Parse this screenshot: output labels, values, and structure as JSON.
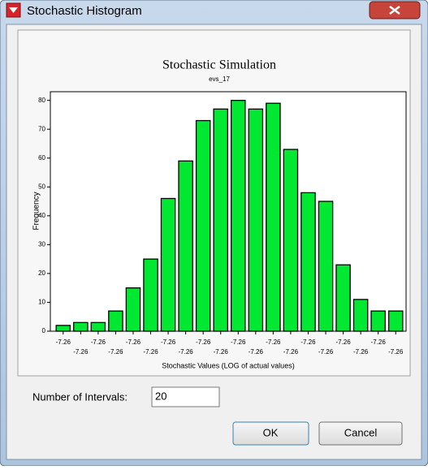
{
  "window": {
    "title": "Stochastic Histogram"
  },
  "chart_data": {
    "type": "bar",
    "title": "Stochastic Simulation",
    "subtitle": "evs_17",
    "x_label": "Stochastic Values (LOG of actual values)",
    "y_label": "Frequency",
    "categories": [
      "-7.26",
      "-7.26",
      "-7.26",
      "-7.26",
      "-7.26",
      "-7.26",
      "-7.26",
      "-7.26",
      "-7.26",
      "-7.26",
      "-7.26",
      "-7.26",
      "-7.26",
      "-7.26",
      "-7.26",
      "-7.26",
      "-7.26",
      "-7.26",
      "-7.26",
      "-7.26"
    ],
    "values": [
      2,
      3,
      3,
      7,
      15,
      25,
      46,
      59,
      73,
      77,
      80,
      77,
      79,
      63,
      48,
      45,
      23,
      11,
      7,
      7
    ],
    "color": "#00e832",
    "ylim": [
      0,
      83
    ],
    "yticks": [
      0,
      10,
      20,
      30,
      40,
      50,
      60,
      70,
      80
    ],
    "grid": false
  },
  "form": {
    "intervals_label": "Number of Intervals:",
    "intervals_value": "20",
    "ok": "OK",
    "cancel": "Cancel"
  }
}
